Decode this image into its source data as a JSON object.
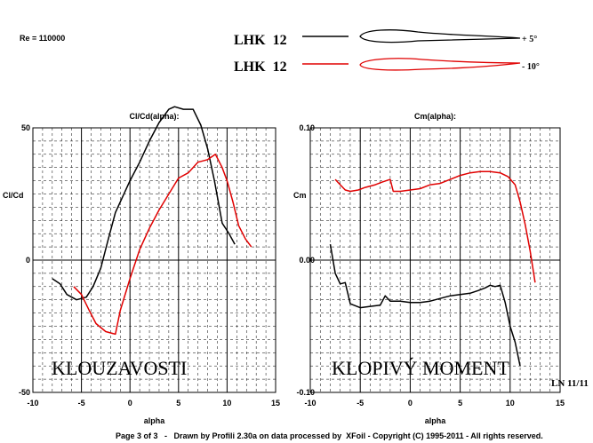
{
  "header": {
    "reynolds": "Re = 110000",
    "legend": [
      {
        "name": "LHK  12",
        "color": "#000000",
        "angle": "+ 5°"
      },
      {
        "name": "LHK  12",
        "color": "#e00000",
        "angle": "- 10°"
      }
    ]
  },
  "footer": {
    "credit": "Page 3 of 3   -   Drawn by Profili 2.30a on data processed by  XFoil - Copyright (C) 1995-2011 - All rights reserved.",
    "corner_note": "LN 11/11"
  },
  "chart_data": [
    {
      "type": "line",
      "title": "Cl/Cd(alpha):",
      "xlabel": "alpha",
      "ylabel": "Cl/Cd",
      "xlim": [
        -10,
        15
      ],
      "ylim": [
        -50,
        50
      ],
      "xticks": [
        "-10",
        "-5",
        "0",
        "5",
        "10",
        "15"
      ],
      "yticks": [
        "50",
        "0",
        "-50"
      ],
      "grid": true,
      "annotation": "KLOUZAVOSTI",
      "series": [
        {
          "color": "#000000",
          "x": [
            -8,
            -7.2,
            -6.5,
            -5.5,
            -4.5,
            -3.8,
            -3,
            -2.3,
            -1.5,
            -1,
            0,
            1,
            2,
            3,
            4,
            4.6,
            5.5,
            6.5,
            7.3,
            8,
            8.7,
            9.5,
            10.2,
            10.8
          ],
          "y": [
            -7,
            -9,
            -13,
            -15,
            -14,
            -10,
            -3,
            7,
            18,
            22,
            30,
            37,
            45,
            52,
            57,
            58,
            57,
            57,
            51,
            42,
            30,
            14,
            10,
            6
          ]
        },
        {
          "color": "#e00000",
          "x": [
            -5.8,
            -5,
            -4.2,
            -3.5,
            -2.5,
            -1.5,
            -1,
            0,
            1,
            2,
            3,
            4,
            5,
            6,
            7,
            8,
            8.8,
            9.5,
            10,
            10.6,
            11.2,
            11.9,
            12.5
          ],
          "y": [
            -10,
            -13,
            -19,
            -24,
            -27,
            -28,
            -19,
            -7,
            4,
            12,
            19,
            25,
            31,
            33,
            37,
            38,
            40,
            35,
            30,
            22,
            13,
            8,
            5
          ]
        }
      ]
    },
    {
      "type": "line",
      "title": "Cm(alpha):",
      "xlabel": "alpha",
      "ylabel": "Cm",
      "xlim": [
        -10,
        15
      ],
      "ylim": [
        -0.1,
        0.1
      ],
      "xticks": [
        "-10",
        "-5",
        "0",
        "5",
        "10",
        "15"
      ],
      "yticks": [
        "0.10",
        "0.00",
        "-0.10"
      ],
      "grid": true,
      "annotation": "KLOPIVÝ MOMENT",
      "series": [
        {
          "color": "#000000",
          "x": [
            -8,
            -7.5,
            -7,
            -6.5,
            -6,
            -5,
            -4,
            -3,
            -2.5,
            -2,
            -1,
            0,
            1,
            2,
            3,
            4,
            5,
            6,
            6.8,
            7.5,
            8,
            8.5,
            9,
            9.5,
            10,
            10.5,
            11
          ],
          "y": [
            0.012,
            -0.01,
            -0.018,
            -0.017,
            -0.033,
            -0.036,
            -0.035,
            -0.034,
            -0.027,
            -0.031,
            -0.031,
            -0.032,
            -0.032,
            -0.031,
            -0.029,
            -0.027,
            -0.026,
            -0.025,
            -0.023,
            -0.021,
            -0.019,
            -0.02,
            -0.019,
            -0.032,
            -0.05,
            -0.062,
            -0.08
          ]
        },
        {
          "color": "#e00000",
          "x": [
            -7.5,
            -7,
            -6.5,
            -6,
            -5.2,
            -4.5,
            -3.5,
            -2.8,
            -2,
            -1.7,
            -1,
            0,
            1,
            2,
            3,
            4,
            5,
            6,
            7,
            8,
            9,
            9.8,
            10.5,
            11,
            11.5,
            12,
            12.5
          ],
          "y": [
            0.061,
            0.057,
            0.053,
            0.052,
            0.053,
            0.055,
            0.057,
            0.059,
            0.061,
            0.052,
            0.052,
            0.053,
            0.054,
            0.057,
            0.058,
            0.061,
            0.064,
            0.066,
            0.067,
            0.067,
            0.066,
            0.063,
            0.057,
            0.044,
            0.027,
            0.007,
            -0.017
          ]
        }
      ]
    }
  ]
}
